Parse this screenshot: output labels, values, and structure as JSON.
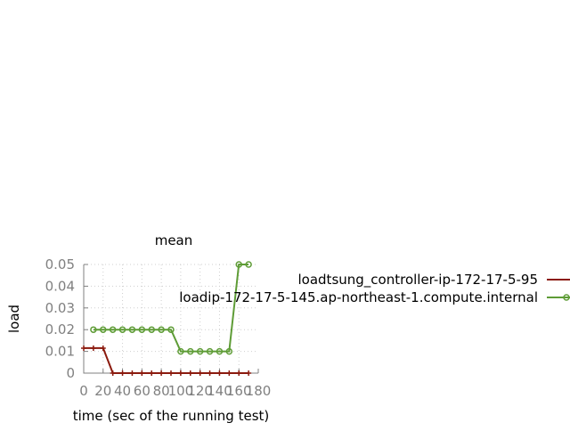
{
  "chart_data": {
    "type": "line",
    "title": "mean",
    "xlabel": "time (sec of the running test)",
    "ylabel": "load",
    "xlim": [
      0,
      180
    ],
    "ylim": [
      0,
      0.05
    ],
    "xticks": [
      "0",
      "20",
      "40",
      "60",
      "80",
      "100",
      "120",
      "140",
      "160",
      "180"
    ],
    "yticks": [
      "0",
      "0.01",
      "0.02",
      "0.03",
      "0.04",
      "0.05"
    ],
    "grid": true,
    "legend_position": "right",
    "series": [
      {
        "name": "loadtsung_controller-ip-172-17-5-95",
        "color": "#8b1a0e",
        "marker": "plus",
        "x": [
          0,
          10,
          20,
          30,
          40,
          50,
          60,
          70,
          80,
          90,
          100,
          110,
          120,
          130,
          140,
          150,
          160,
          170
        ],
        "y": [
          0.0115,
          0.0115,
          0.0115,
          0,
          0,
          0,
          0,
          0,
          0,
          0,
          0,
          0,
          0,
          0,
          0,
          0,
          0,
          0
        ]
      },
      {
        "name": "loadip-172-17-5-145.ap-northeast-1.compute.internal",
        "color": "#5e9c36",
        "marker": "circle",
        "x": [
          10,
          20,
          30,
          40,
          50,
          60,
          70,
          80,
          90,
          100,
          110,
          120,
          130,
          140,
          150,
          160,
          170
        ],
        "y": [
          0.02,
          0.02,
          0.02,
          0.02,
          0.02,
          0.02,
          0.02,
          0.02,
          0.02,
          0.01,
          0.01,
          0.01,
          0.01,
          0.01,
          0.01,
          0.05,
          0.05
        ]
      }
    ]
  }
}
